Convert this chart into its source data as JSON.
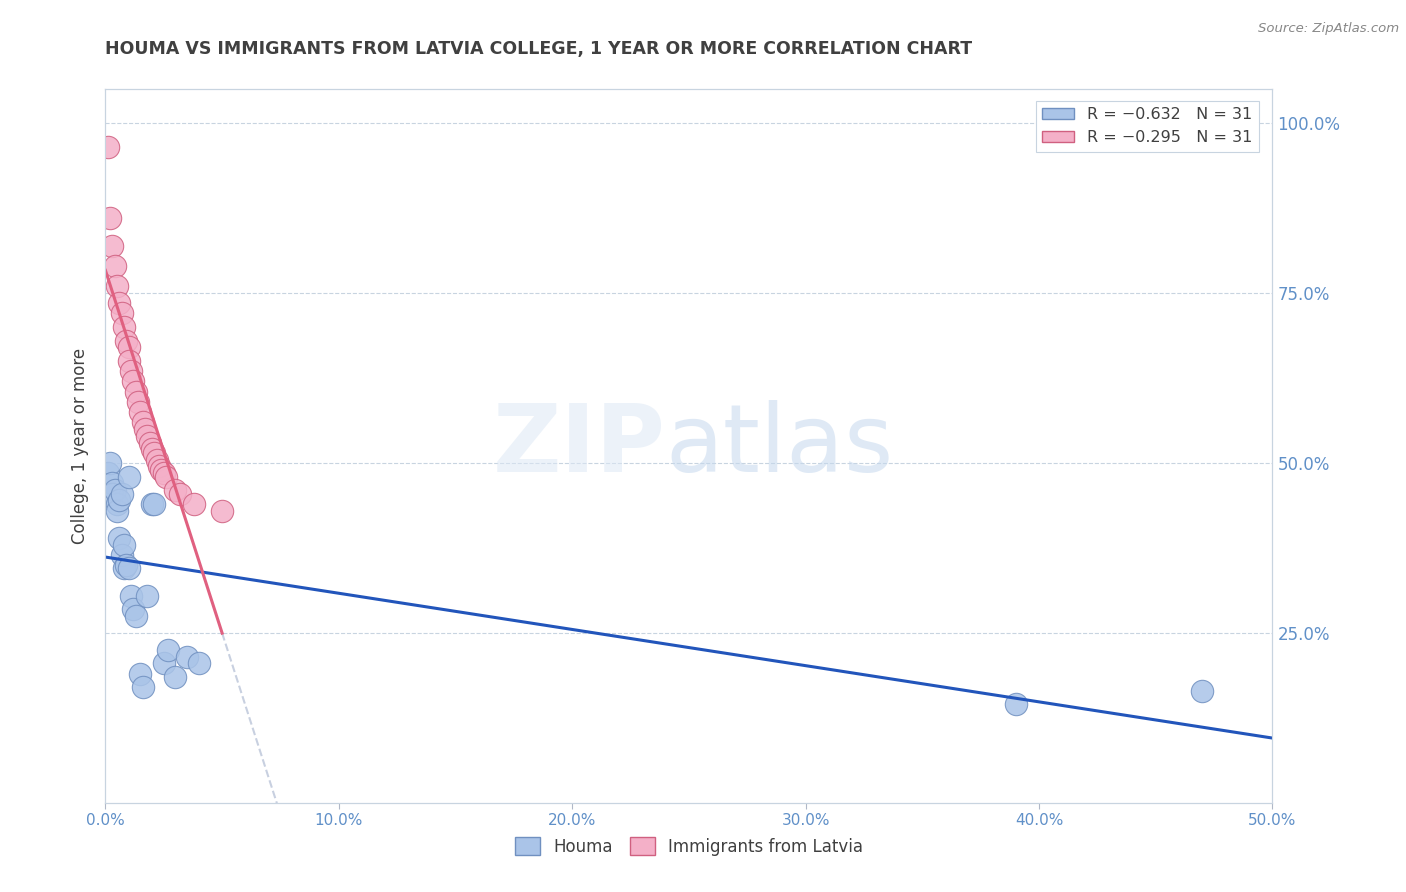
{
  "title": "HOUMA VS IMMIGRANTS FROM LATVIA COLLEGE, 1 YEAR OR MORE CORRELATION CHART",
  "source": "Source: ZipAtlas.com",
  "ylabel": "College, 1 year or more",
  "xlim": [
    0.0,
    0.5
  ],
  "ylim": [
    0.0,
    1.05
  ],
  "x_ticks": [
    0.0,
    0.1,
    0.2,
    0.3,
    0.4,
    0.5
  ],
  "x_tick_labels": [
    "0.0%",
    "10.0%",
    "20.0%",
    "30.0%",
    "40.0%",
    "50.0%"
  ],
  "right_yticks": [
    0.25,
    0.5,
    0.75,
    1.0
  ],
  "right_yticklabels": [
    "25.0%",
    "50.0%",
    "75.0%",
    "100.0%"
  ],
  "houma_x": [
    0.001,
    0.002,
    0.003,
    0.003,
    0.004,
    0.005,
    0.005,
    0.006,
    0.006,
    0.007,
    0.007,
    0.008,
    0.008,
    0.009,
    0.01,
    0.01,
    0.011,
    0.012,
    0.013,
    0.015,
    0.016,
    0.018,
    0.02,
    0.021,
    0.025,
    0.027,
    0.03,
    0.035,
    0.04,
    0.39,
    0.47
  ],
  "houma_y": [
    0.485,
    0.5,
    0.47,
    0.455,
    0.46,
    0.44,
    0.43,
    0.39,
    0.445,
    0.455,
    0.365,
    0.38,
    0.345,
    0.35,
    0.48,
    0.345,
    0.305,
    0.285,
    0.275,
    0.19,
    0.17,
    0.305,
    0.44,
    0.44,
    0.205,
    0.225,
    0.185,
    0.215,
    0.205,
    0.145,
    0.165
  ],
  "latvia_x": [
    0.001,
    0.002,
    0.003,
    0.004,
    0.005,
    0.006,
    0.007,
    0.008,
    0.009,
    0.01,
    0.01,
    0.011,
    0.012,
    0.013,
    0.014,
    0.015,
    0.016,
    0.017,
    0.018,
    0.019,
    0.02,
    0.021,
    0.022,
    0.023,
    0.024,
    0.025,
    0.026,
    0.03,
    0.032,
    0.038,
    0.05
  ],
  "latvia_y": [
    0.965,
    0.86,
    0.82,
    0.79,
    0.76,
    0.735,
    0.72,
    0.7,
    0.68,
    0.67,
    0.65,
    0.635,
    0.62,
    0.605,
    0.59,
    0.575,
    0.56,
    0.55,
    0.54,
    0.53,
    0.52,
    0.515,
    0.505,
    0.495,
    0.49,
    0.485,
    0.48,
    0.46,
    0.455,
    0.44,
    0.43
  ],
  "houma_dot_color": "#aac4e8",
  "houma_dot_edge": "#7090c0",
  "latvia_dot_color": "#f4b0c8",
  "latvia_dot_edge": "#d06080",
  "trend_houma_color": "#2255bb",
  "trend_latvia_color": "#e06080",
  "trend_dashed_color": "#c8d0e0",
  "grid_color": "#c8d4e0",
  "bg_color": "#ffffff",
  "title_color": "#404040",
  "axis_tick_color": "#6090c8",
  "right_tick_color": "#6090c8",
  "source_color": "#888888"
}
